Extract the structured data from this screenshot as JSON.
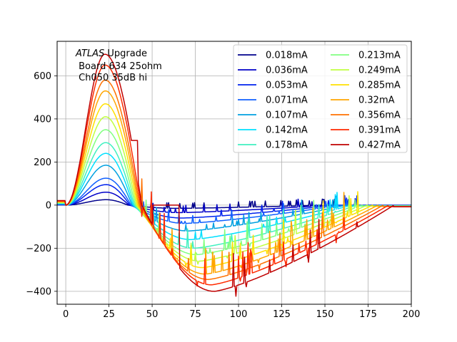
{
  "chart_data": {
    "type": "line",
    "annotation": {
      "line1_italic": "ATLAS",
      "line1_rest": " Upgrade",
      "line2": " Board 634 25ohm",
      "line3": " Ch050 35dB hi"
    },
    "xlim": [
      -5,
      200
    ],
    "ylim": [
      -460,
      760
    ],
    "x_ticks": [
      0,
      25,
      50,
      75,
      100,
      125,
      150,
      175,
      200
    ],
    "x_tick_labels": [
      "0",
      "25",
      "50",
      "75",
      "100",
      "125",
      "150",
      "175",
      "200"
    ],
    "y_ticks": [
      -400,
      -200,
      0,
      200,
      400,
      600
    ],
    "y_tick_labels": [
      "−400",
      "−200",
      "0",
      "200",
      "400",
      "600"
    ],
    "grid": true,
    "legend_position": "top-right",
    "legend_columns": 2,
    "series": [
      {
        "name": "0.018mA",
        "color": "#00008b",
        "peak": 25,
        "trough": -15
      },
      {
        "name": "0.036mA",
        "color": "#0000c8",
        "peak": 60,
        "trough": -35
      },
      {
        "name": "0.053mA",
        "color": "#0022ee",
        "peak": 95,
        "trough": -60
      },
      {
        "name": "0.071mA",
        "color": "#1060ff",
        "peak": 125,
        "trough": -85
      },
      {
        "name": "0.107mA",
        "color": "#00a0e0",
        "peak": 185,
        "trough": -120
      },
      {
        "name": "0.142mA",
        "color": "#00e0ff",
        "peak": 240,
        "trough": -160
      },
      {
        "name": "0.178mA",
        "color": "#40f0c0",
        "peak": 290,
        "trough": -200
      },
      {
        "name": "0.213mA",
        "color": "#80ff80",
        "peak": 350,
        "trough": -230
      },
      {
        "name": "0.249mA",
        "color": "#c0ff40",
        "peak": 410,
        "trough": -260
      },
      {
        "name": "0.285mA",
        "color": "#ffe000",
        "peak": 470,
        "trough": -290
      },
      {
        "name": "0.32mA",
        "color": "#ffa500",
        "peak": 530,
        "trough": -320
      },
      {
        "name": "0.356mA",
        "color": "#ff7000",
        "peak": 580,
        "trough": -345
      },
      {
        "name": "0.391mA",
        "color": "#ff2a00",
        "peak": 650,
        "trough": -370
      },
      {
        "name": "0.427mA",
        "color": "#c00000",
        "peak": 700,
        "trough": -400
      }
    ]
  }
}
